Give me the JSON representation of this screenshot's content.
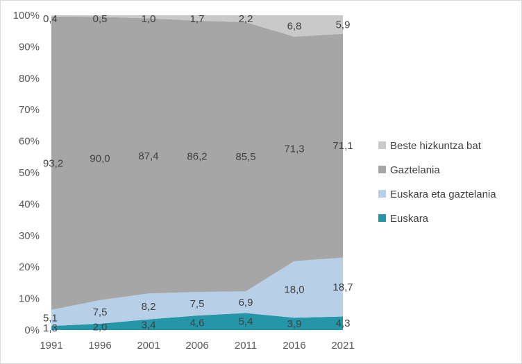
{
  "chart_data": {
    "type": "area",
    "stacked": "percent",
    "categories": [
      "1991",
      "1996",
      "2001",
      "2006",
      "2011",
      "2016",
      "2021"
    ],
    "y_ticks": [
      "0%",
      "10%",
      "20%",
      "30%",
      "40%",
      "50%",
      "60%",
      "70%",
      "80%",
      "90%",
      "100%"
    ],
    "ylim": [
      0,
      100
    ],
    "legend_position": "right",
    "series": [
      {
        "name": "Euskara",
        "color": "#2596a8",
        "values": [
          1.3,
          2.0,
          3.4,
          4.6,
          5.4,
          3.9,
          4.3
        ],
        "labels": [
          "1,3",
          "2,0",
          "3,4",
          "4,6",
          "5,4",
          "3,9",
          "4,3"
        ]
      },
      {
        "name": "Euskara eta gaztelania",
        "color": "#b8cfe8",
        "values": [
          5.1,
          7.5,
          8.2,
          7.5,
          6.9,
          18.0,
          18.7
        ],
        "labels": [
          "5,1",
          "7,5",
          "8,2",
          "7,5",
          "6,9",
          "18,0",
          "18,7"
        ]
      },
      {
        "name": "Gaztelania",
        "color": "#a6a6a6",
        "values": [
          93.2,
          90.0,
          87.4,
          86.2,
          85.5,
          71.3,
          71.1
        ],
        "labels": [
          "93,2",
          "90,0",
          "87,4",
          "86,2",
          "85,5",
          "71,3",
          "71,1"
        ]
      },
      {
        "name": "Beste hizkuntza bat",
        "color": "#c9c9c9",
        "values": [
          0.4,
          0.5,
          1.0,
          1.7,
          2.2,
          6.8,
          5.9
        ],
        "labels": [
          "0,4",
          "0,5",
          "1,0",
          "1,7",
          "2,2",
          "6,8",
          "5,9"
        ]
      }
    ],
    "legend_order": [
      3,
      2,
      1,
      0
    ]
  }
}
